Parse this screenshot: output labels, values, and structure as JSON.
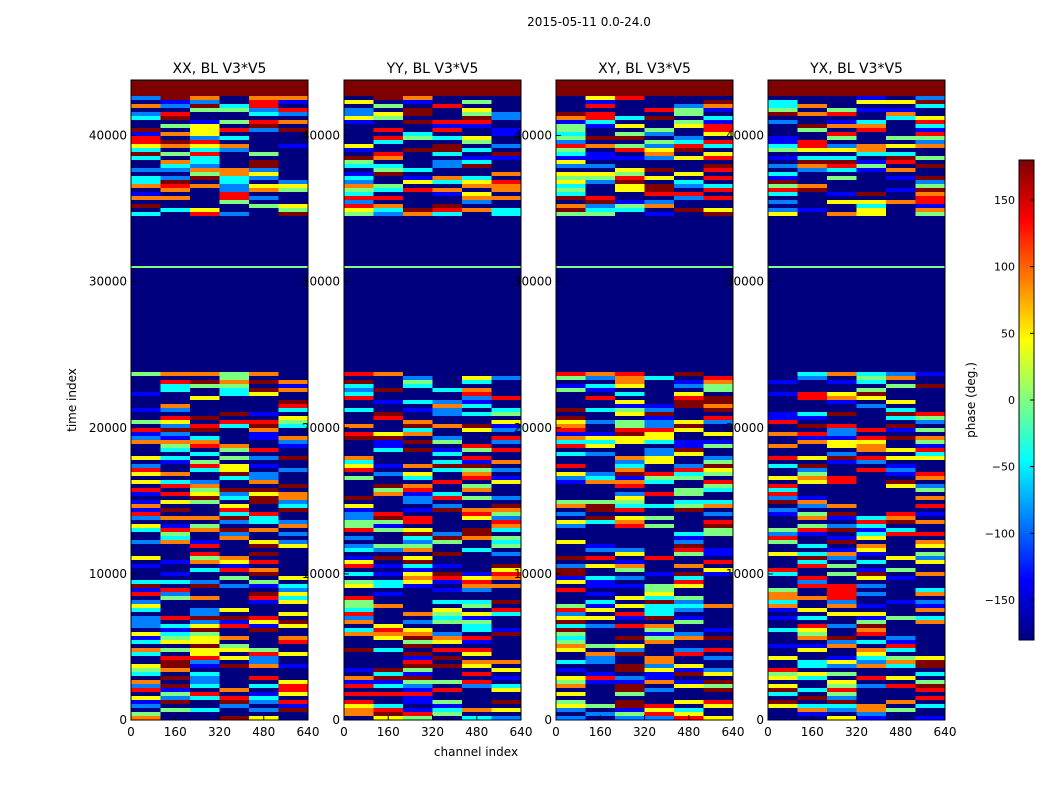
{
  "figure_title": "2015-05-11 0.0-24.0",
  "chart_data": {
    "type": "heatmap",
    "suptitle": "2015-05-11 0.0-24.0",
    "xlabel": "channel index",
    "ylabel": "time index",
    "xlim": [
      0,
      640
    ],
    "ylim": [
      0,
      43800
    ],
    "xticks": [
      0,
      160,
      320,
      480,
      640
    ],
    "yticks": [
      0,
      10000,
      20000,
      30000,
      40000
    ],
    "panels": [
      {
        "title": "XX, BL V3*V5"
      },
      {
        "title": "YY, BL V3*V5"
      },
      {
        "title": "XY, BL V3*V5"
      },
      {
        "title": "YX, BL V3*V5"
      }
    ],
    "colorbar": {
      "label": "phase (deg.)",
      "range": [
        -180,
        180
      ],
      "ticks": [
        -150,
        -100,
        -50,
        0,
        50,
        100,
        150
      ],
      "tick_labels": [
        "−150",
        "−100",
        "−50",
        "0",
        "50",
        "100",
        "150"
      ],
      "colormap": "jet",
      "colors": [
        "#00007f",
        "#0000ff",
        "#007fff",
        "#00ffff",
        "#7fff7f",
        "#ffff00",
        "#ff7f00",
        "#ff0000",
        "#7f0000"
      ]
    },
    "structure": {
      "masked_color": "#00007f",
      "top_band_color": "#7f0000",
      "top_band_range": [
        42800,
        43800
      ],
      "masked_ranges": [
        [
          24000,
          34700
        ]
      ],
      "line_rows": [
        31000
      ]
    }
  }
}
